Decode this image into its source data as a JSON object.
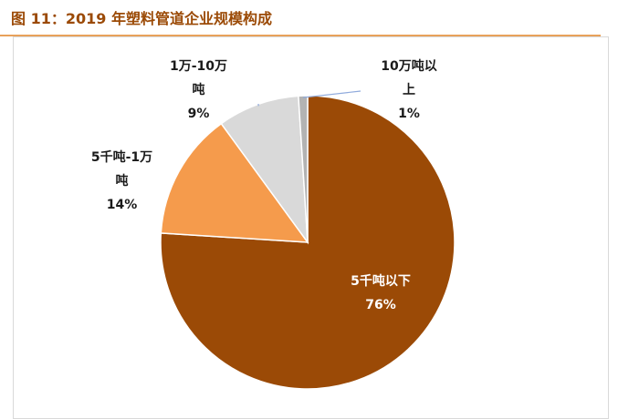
{
  "title": "图 11：2019 年塑料管道企业规模构成",
  "chart_data": {
    "type": "pie",
    "title": "图 11：2019 年塑料管道企业规模构成",
    "slices": [
      {
        "name_lines": [
          "5千吨以下"
        ],
        "value": 76,
        "value_label": "76%",
        "color": "#9b4a06"
      },
      {
        "name_lines": [
          "5千吨-1万",
          "吨"
        ],
        "value": 14,
        "value_label": "14%",
        "color": "#f59b4c"
      },
      {
        "name_lines": [
          "1万-10万",
          "吨"
        ],
        "value": 9,
        "value_label": "9%",
        "color": "#d9d9d9"
      },
      {
        "name_lines": [
          "10万吨以",
          "上"
        ],
        "value": 1,
        "value_label": "1%",
        "color": "#b3b3b3"
      }
    ],
    "start_angle": "12 o'clock",
    "direction": "clockwise",
    "label_style": "name and percent"
  }
}
